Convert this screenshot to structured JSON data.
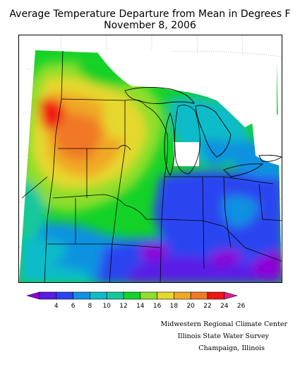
{
  "title": {
    "line1": "Average Temperature Departure from Mean in Degrees F",
    "line2": "November 8, 2006"
  },
  "legend": {
    "labels": [
      "4",
      "6",
      "8",
      "10",
      "12",
      "14",
      "16",
      "18",
      "20",
      "22",
      "24",
      "26"
    ],
    "colors": [
      "#8c00d6",
      "#5a1ce6",
      "#2a44f0",
      "#0c92e0",
      "#0cbcc8",
      "#14c89c",
      "#14d228",
      "#8ede2c",
      "#e6d82e",
      "#f0a828",
      "#f07828",
      "#f01416",
      "#e61c8e"
    ]
  },
  "credits": {
    "line1": "Midwestern Regional Climate Center",
    "line2": "Illinois State Water Survey",
    "line3": "Champaign, Illinois"
  }
}
